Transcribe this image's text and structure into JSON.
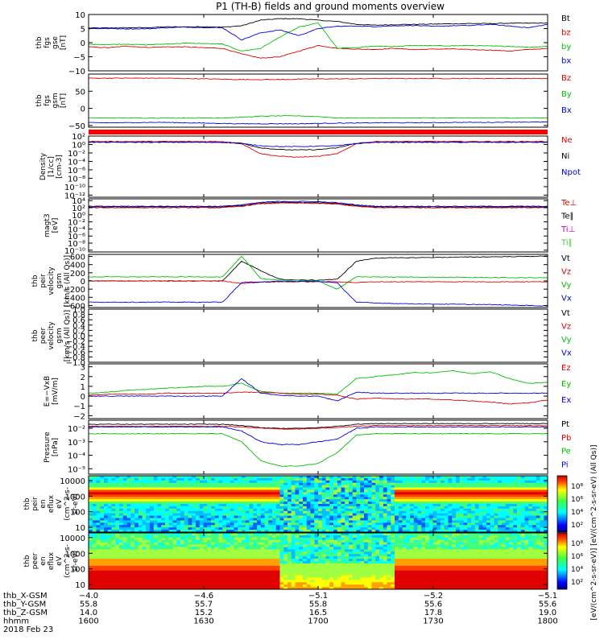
{
  "title": "P1 (TH-B) fields and ground moments overview",
  "colors": {
    "black": "#000000",
    "red": "#e00000",
    "green": "#00c000",
    "blue": "#0000e0",
    "magenta": "#c000c0",
    "lightgreen": "#40d040"
  },
  "chart_data": [
    {
      "type": "line",
      "name": "fgs_gse",
      "ylabel_lines": [
        "thb",
        "fgs",
        "gse",
        "[nT]"
      ],
      "yticks": [
        "10",
        "5",
        "0",
        "−5",
        "−10"
      ],
      "ylim": [
        -10,
        10
      ],
      "legend": [
        {
          "label": "Bt",
          "color": "#000000"
        },
        {
          "label": "bz",
          "color": "#e00000"
        },
        {
          "label": "by",
          "color": "#00c000"
        },
        {
          "label": "bx",
          "color": "#0000e0"
        }
      ],
      "series": [
        {
          "color": "#000000",
          "y": [
            5.2,
            5.2,
            5.3,
            5.3,
            5.6,
            5.6,
            5.7,
            5.5,
            6,
            8,
            8.5,
            8.5,
            8,
            7.5,
            6.5,
            6.2,
            6.4,
            6.5,
            6.6,
            6.7,
            6.8,
            6.8,
            6.9,
            6.9,
            7
          ]
        },
        {
          "color": "#e00000",
          "y": [
            -1.5,
            -1.8,
            -1.2,
            -1.7,
            -1.5,
            -1.5,
            -1.8,
            -2,
            -4,
            -5.5,
            -5,
            -3,
            -1,
            -2,
            -2.3,
            -2.4,
            -2,
            -2.5,
            -2.3,
            -2.2,
            -2.5,
            -2.6,
            -3,
            -2.4,
            -2.1
          ]
        },
        {
          "color": "#00c000",
          "y": [
            -0.6,
            -0.7,
            -0.5,
            -0.8,
            -0.5,
            -0.2,
            -0.3,
            -0.5,
            -3,
            -2,
            2,
            5.5,
            7,
            -2,
            -1.8,
            -1.2,
            -1.4,
            -1,
            -1.1,
            -1.1,
            -1,
            -1.2,
            -1.3,
            -1.6,
            -1.3
          ]
        },
        {
          "color": "#0000e0",
          "y": [
            5,
            5,
            4.9,
            4.9,
            5.3,
            5.5,
            5.4,
            5.3,
            1,
            3.5,
            4.5,
            2.5,
            5,
            5.8,
            5.9,
            5.7,
            6,
            6.1,
            5.8,
            6,
            6.1,
            6.5,
            5.9,
            5.3,
            6.5
          ]
        }
      ]
    },
    {
      "type": "line",
      "name": "fgs_gsm",
      "ylabel_lines": [
        "thb",
        "fgs",
        "gsm",
        "[nT]"
      ],
      "yticks": [
        "50",
        "0",
        "−50"
      ],
      "ylim": [
        -55,
        100
      ],
      "legend": [
        {
          "label": "Bz",
          "color": "#e00000"
        },
        {
          "label": "By",
          "color": "#00c000"
        },
        {
          "label": "Bx",
          "color": "#0000e0"
        }
      ],
      "series": [
        {
          "color": "#e00000",
          "y": [
            88,
            88,
            88,
            88,
            88,
            87,
            86,
            85,
            84,
            84,
            84,
            85,
            86,
            86,
            86,
            87,
            87,
            87,
            87,
            87,
            87,
            87,
            87,
            87,
            87
          ]
        },
        {
          "color": "#00c000",
          "y": [
            -28,
            -28,
            -28,
            -28,
            -28,
            -28,
            -28,
            -28,
            -26,
            -23,
            -22,
            -22,
            -24,
            -28,
            -28,
            -28,
            -28,
            -28,
            -28,
            -28,
            -28,
            -28,
            -28,
            -28,
            -28
          ]
        },
        {
          "color": "#0000e0",
          "y": [
            -42,
            -42,
            -42,
            -41,
            -41,
            -42,
            -43,
            -44,
            -45,
            -45,
            -45,
            -45,
            -44,
            -43,
            -43,
            -42,
            -42,
            -42,
            -42,
            -41,
            -41,
            -41,
            -40,
            -40,
            -40
          ]
        }
      ]
    },
    {
      "type": "line",
      "name": "density",
      "ylog": true,
      "ylabel_lines": [
        "Density",
        "[1/cc]",
        "[cm-3]"
      ],
      "yticks": [
        "10²",
        "10⁰",
        "10⁻²",
        "10⁻⁴",
        "10⁻⁶",
        "10⁻⁸",
        "10⁻¹⁰",
        "10⁻¹²"
      ],
      "ylim": [
        -12.5,
        2
      ],
      "legend": [
        {
          "label": "Ne",
          "color": "#e00000"
        },
        {
          "label": "Ni",
          "color": "#000000"
        },
        {
          "label": "Npot",
          "color": "#0000e0"
        }
      ],
      "series": [
        {
          "color": "#000000",
          "y": [
            0.6,
            0.6,
            0.6,
            0.6,
            0.6,
            0.6,
            0.6,
            0.6,
            0.3,
            -0.8,
            -1.2,
            -1.3,
            -1.2,
            -0.8,
            0.3,
            0.6,
            0.6,
            0.6,
            0.6,
            0.6,
            0.6,
            0.6,
            0.6,
            0.6,
            0.6
          ]
        },
        {
          "color": "#e00000",
          "y": [
            0.7,
            0.7,
            0.7,
            0.7,
            0.7,
            0.7,
            0.7,
            0.7,
            0.2,
            -2.2,
            -2.8,
            -3,
            -2.8,
            -2.2,
            0.2,
            0.7,
            0.7,
            0.7,
            0.7,
            0.7,
            0.7,
            0.7,
            0.7,
            0.7,
            0.7
          ]
        },
        {
          "color": "#0000e0",
          "y": [
            0.5,
            0.5,
            0.5,
            0.5,
            0.5,
            0.5,
            0.5,
            0.5,
            0.2,
            -0.3,
            -0.5,
            -0.5,
            -0.4,
            -0.3,
            0.2,
            0.5,
            0.5,
            0.5,
            0.5,
            0.5,
            0.5,
            0.5,
            0.5,
            0.5,
            0.5
          ]
        }
      ]
    },
    {
      "type": "line",
      "name": "temperature",
      "ylog": true,
      "ylabel_lines": [
        "magt3",
        "[eV]"
      ],
      "yticks": [
        "10⁴",
        "10²",
        "10⁰",
        "10⁻²",
        "10⁻⁴",
        "10⁻⁶",
        "10⁻⁸",
        "10⁻¹⁰"
      ],
      "ylim": [
        -10.5,
        4.5
      ],
      "legend": [
        {
          "label": "Te⊥",
          "color": "#e00000"
        },
        {
          "label": "Te∥",
          "color": "#000000"
        },
        {
          "label": "Ti⊥",
          "color": "#c000c0"
        },
        {
          "label": "Ti∥",
          "color": "#40d040"
        }
      ],
      "series": [
        {
          "color": "#000000",
          "y": [
            2.2,
            2.2,
            2.2,
            2.2,
            2.2,
            2.2,
            2.2,
            2.2,
            2.6,
            3.3,
            3.5,
            3.5,
            3.4,
            3.2,
            2.6,
            2.2,
            2.2,
            2.2,
            2.2,
            2.2,
            2.2,
            2.2,
            2.2,
            2.2,
            2.2
          ]
        },
        {
          "color": "#e00000",
          "y": [
            2.0,
            2.0,
            2.0,
            2.0,
            2.0,
            2.0,
            2.0,
            2.0,
            2.4,
            3.1,
            3.3,
            3.3,
            3.2,
            3.0,
            2.4,
            2.0,
            2.0,
            2.0,
            2.0,
            2.0,
            2.0,
            2.0,
            2.0,
            2.0,
            2.0
          ]
        },
        {
          "color": "#0000e0",
          "y": [
            2.4,
            2.4,
            2.4,
            2.4,
            2.4,
            2.4,
            2.4,
            2.4,
            2.8,
            3.5,
            3.8,
            3.8,
            3.7,
            3.4,
            2.8,
            2.4,
            2.4,
            2.4,
            2.4,
            2.4,
            2.4,
            2.4,
            2.4,
            2.4,
            2.4
          ]
        }
      ]
    },
    {
      "type": "line",
      "name": "peir_velocity",
      "ylabel_lines": [
        "thb",
        "peir",
        "velocity",
        "gsm",
        "[km/s (All Qs)]"
      ],
      "yticks": [
        "600",
        "400",
        "200",
        "0",
        "−200",
        "−400",
        "−600"
      ],
      "ylim": [
        -650,
        650
      ],
      "legend": [
        {
          "label": "Vt",
          "color": "#000000"
        },
        {
          "label": "Vz",
          "color": "#e00000"
        },
        {
          "label": "Vy",
          "color": "#00c000"
        },
        {
          "label": "Vx",
          "color": "#0000e0"
        }
      ],
      "series": [
        {
          "color": "#000000",
          "y": [
            0,
            0,
            0,
            0,
            0,
            0,
            0,
            0,
            480,
            250,
            40,
            20,
            20,
            40,
            480,
            560,
            565,
            570,
            575,
            580,
            585,
            590,
            595,
            600,
            610
          ]
        },
        {
          "color": "#00c000",
          "y": [
            100,
            100,
            100,
            100,
            100,
            100,
            100,
            100,
            600,
            60,
            20,
            10,
            0,
            -200,
            100,
            100,
            95,
            95,
            90,
            90,
            85,
            85,
            80,
            80,
            80
          ]
        },
        {
          "color": "#e00000",
          "y": [
            0,
            0,
            0,
            0,
            0,
            0,
            0,
            0,
            -60,
            -30,
            -20,
            -20,
            -20,
            -20,
            -40,
            -20,
            -20,
            -20,
            -20,
            -20,
            -20,
            -20,
            -20,
            -20,
            -20
          ]
        },
        {
          "color": "#0000e0",
          "y": [
            -520,
            -520,
            -520,
            -520,
            -520,
            -520,
            -520,
            -520,
            -40,
            -20,
            -10,
            -10,
            -10,
            -50,
            -520,
            -540,
            -550,
            -560,
            -565,
            -570,
            -575,
            -580,
            -590,
            -600,
            -610
          ]
        }
      ]
    },
    {
      "type": "line",
      "name": "peer_velocity",
      "ylabel_lines": [
        "thb",
        "peer",
        "velocity",
        "gsm",
        "[km/s (All Qs)]"
      ],
      "yticks": [
        "1.0",
        "0.8",
        "0.6",
        "0.4",
        "0.2",
        "0.0",
        "−0.2",
        "−0.4",
        "−0.6",
        "−0.8",
        "−1.0"
      ],
      "ylim": [
        -1.0,
        1.0
      ],
      "legend": [
        {
          "label": "Vt",
          "color": "#000000"
        },
        {
          "label": "Vz",
          "color": "#e00000"
        },
        {
          "label": "Vy",
          "color": "#00c000"
        },
        {
          "label": "Vx",
          "color": "#0000e0"
        }
      ],
      "series": []
    },
    {
      "type": "line",
      "name": "e_field",
      "ylabel_lines": [
        "E=−VxB",
        "[mV/m]"
      ],
      "yticks": [
        "3",
        "2",
        "1",
        "0",
        "−1",
        "−2"
      ],
      "ylim": [
        -2.3,
        3.3
      ],
      "legend": [
        {
          "label": "Ez",
          "color": "#e00000"
        },
        {
          "label": "Ey",
          "color": "#00c000"
        },
        {
          "label": "Ex",
          "color": "#0000e0"
        }
      ],
      "series": [
        {
          "color": "#00c000",
          "y": [
            0.3,
            0.4,
            0.6,
            0.7,
            0.8,
            0.9,
            1.0,
            1.0,
            1.3,
            0.5,
            0.3,
            0.3,
            0.3,
            0.2,
            1.8,
            2.0,
            2.2,
            2.4,
            2.4,
            2.6,
            2.3,
            2.5,
            1.8,
            1.3,
            1.4
          ]
        },
        {
          "color": "#e00000",
          "y": [
            0.1,
            0.2,
            0.2,
            0.2,
            0.3,
            0.3,
            0.3,
            0.3,
            0.4,
            0.4,
            0.3,
            0.2,
            0.2,
            0.1,
            -0.3,
            -0.2,
            -0.3,
            -0.3,
            -0.3,
            -0.4,
            -0.5,
            -0.6,
            -0.8,
            -0.7,
            -0.4
          ]
        },
        {
          "color": "#0000e0",
          "y": [
            0,
            0,
            0,
            0,
            0,
            0,
            0,
            0,
            1.8,
            0.3,
            0.1,
            0,
            0,
            -0.5,
            0.4,
            0.3,
            0.3,
            0.3,
            0.3,
            0.3,
            0.3,
            0.3,
            0.3,
            0.3,
            0.3
          ]
        }
      ]
    },
    {
      "type": "line",
      "name": "pressure",
      "ylog": true,
      "ylabel_lines": [
        "Pressure",
        "[nPa]"
      ],
      "yticks": [
        "10⁻²",
        "10⁻³",
        "10⁻⁴",
        "10⁻⁵"
      ],
      "ylim": [
        -5.4,
        -1.4
      ],
      "legend": [
        {
          "label": "Pt",
          "color": "#000000"
        },
        {
          "label": "Pb",
          "color": "#e00000"
        },
        {
          "label": "Pe",
          "color": "#00c000"
        },
        {
          "label": "Pi",
          "color": "#0000e0"
        }
      ],
      "series": [
        {
          "color": "#000000",
          "y": [
            -1.7,
            -1.7,
            -1.7,
            -1.7,
            -1.7,
            -1.7,
            -1.7,
            -1.7,
            -1.8,
            -1.95,
            -2.0,
            -2.0,
            -1.95,
            -1.85,
            -1.7,
            -1.65,
            -1.65,
            -1.65,
            -1.65,
            -1.65,
            -1.65,
            -1.65,
            -1.65,
            -1.65,
            -1.65
          ]
        },
        {
          "color": "#e00000",
          "y": [
            -1.85,
            -1.85,
            -1.85,
            -1.85,
            -1.85,
            -1.85,
            -1.85,
            -1.85,
            -1.9,
            -2.0,
            -2.05,
            -2.05,
            -2.0,
            -1.95,
            -1.85,
            -1.8,
            -1.8,
            -1.8,
            -1.8,
            -1.8,
            -1.8,
            -1.8,
            -1.8,
            -1.8,
            -1.8
          ]
        },
        {
          "color": "#0000e0",
          "y": [
            -1.9,
            -1.9,
            -1.9,
            -1.9,
            -1.9,
            -1.9,
            -1.9,
            -1.9,
            -2.2,
            -3.0,
            -3.2,
            -3.2,
            -3.0,
            -2.8,
            -2.0,
            -1.9,
            -1.9,
            -1.9,
            -1.9,
            -1.9,
            -1.9,
            -1.9,
            -1.9,
            -1.9,
            -1.9
          ]
        },
        {
          "color": "#00c000",
          "y": [
            -2.4,
            -2.4,
            -2.4,
            -2.4,
            -2.4,
            -2.4,
            -2.4,
            -2.4,
            -3.0,
            -4.4,
            -4.8,
            -4.8,
            -4.6,
            -3.8,
            -2.5,
            -2.4,
            -2.4,
            -2.4,
            -2.4,
            -2.4,
            -2.4,
            -2.4,
            -2.4,
            -2.4,
            -2.4
          ]
        }
      ]
    },
    {
      "type": "heatmap",
      "name": "peir_en_eflux",
      "ylabel_lines": [
        "thb",
        "peir",
        "en",
        "eflux",
        "eV",
        "(cm^2-s-",
        "sr-eV)"
      ],
      "yticks": [
        "10000",
        "1000",
        "100",
        "10"
      ],
      "ylim": [
        0.7,
        4.3
      ]
    },
    {
      "type": "heatmap",
      "name": "peer_en_eflux",
      "ylabel_lines": [
        "thb",
        "peer",
        "en",
        "eflux",
        "eV",
        "(cm^2-s-",
        "sr-eV)"
      ],
      "yticks": [
        "10000",
        "1000",
        "100",
        "10"
      ],
      "ylim": [
        0.7,
        4.3
      ]
    }
  ],
  "colorbars": [
    {
      "ticks": [
        "10⁸",
        "10⁶",
        "10⁴",
        "10²"
      ]
    },
    {
      "ticks": [
        "10⁸",
        "10⁶",
        "10⁴",
        "10²"
      ]
    }
  ],
  "colorbar_label": "[eV/(cm^2-s-sr-eV)] [eV/(cm^2-s-sr-eV) (All Qs)]",
  "xaxis": {
    "rows": [
      {
        "label": "thb_X-GSM",
        "values": [
          "−4.0",
          "−4.6",
          "−5.1",
          "−5.2",
          "−5.1"
        ]
      },
      {
        "label": "thb_Y-GSM",
        "values": [
          "55.8",
          "55.7",
          "55.8",
          "55.6",
          "55.6"
        ]
      },
      {
        "label": "thb_Z-GSM",
        "values": [
          "14.0",
          "15.2",
          "16.5",
          "17.8",
          "19.0"
        ]
      },
      {
        "label": "hhmm",
        "values": [
          "1600",
          "1630",
          "1700",
          "1730",
          "1800"
        ]
      }
    ],
    "date": "2018 Feb 23"
  }
}
